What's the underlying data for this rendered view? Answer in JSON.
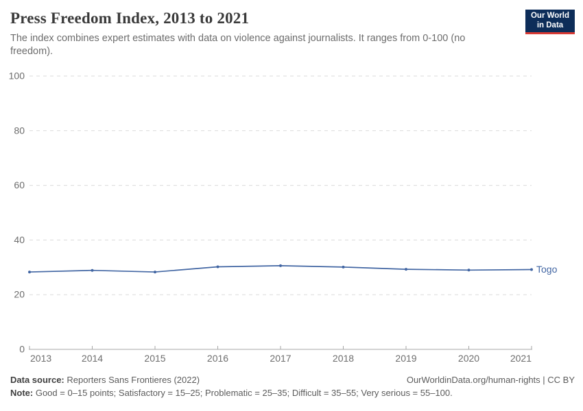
{
  "header": {
    "title": "Press Freedom Index, 2013 to 2021",
    "subtitle": "The index combines expert estimates with data on violence against journalists. It ranges from 0-100 (no freedom)."
  },
  "logo": {
    "line1": "Our World",
    "line2": "in Data",
    "bg_color": "#0d2d59",
    "accent_color": "#d93a34"
  },
  "chart_data": {
    "type": "line",
    "title": "Press Freedom Index, 2013 to 2021",
    "x": [
      2013,
      2014,
      2015,
      2016,
      2017,
      2018,
      2019,
      2020,
      2021
    ],
    "series": [
      {
        "name": "Togo",
        "values": [
          28.3,
          28.9,
          28.3,
          30.2,
          30.6,
          30.1,
          29.3,
          29.0,
          29.2
        ],
        "color": "#4266a3"
      }
    ],
    "ylim": [
      0,
      100
    ],
    "yticks": [
      0,
      20,
      40,
      60,
      80,
      100
    ],
    "xlabel": "",
    "ylabel": "",
    "grid": "horizontal-dashed",
    "legend": "end-of-line-label"
  },
  "footer": {
    "data_source_label": "Data source:",
    "data_source_value": "Reporters Sans Frontieres (2022)",
    "attribution": "OurWorldinData.org/human-rights | CC BY",
    "note_label": "Note:",
    "note_value": "Good = 0–15 points; Satisfactory = 15–25; Problematic = 25–35; Difficult = 35–55; Very serious = 55–100."
  }
}
